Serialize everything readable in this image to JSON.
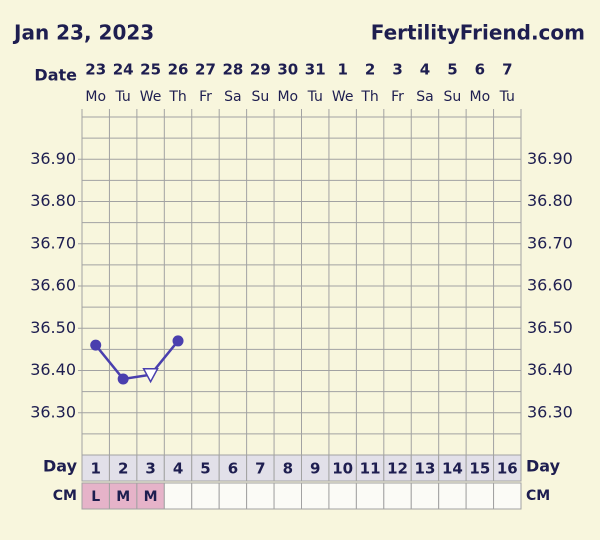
{
  "chart_data": {
    "type": "line",
    "title": "Jan 23, 2023",
    "site": "FertilityFriend.com",
    "date_label": "Date",
    "day_label": "Day",
    "cm_label": "CM",
    "dates": [
      "23",
      "24",
      "25",
      "26",
      "27",
      "28",
      "29",
      "30",
      "31",
      "1",
      "2",
      "3",
      "4",
      "5",
      "6",
      "7"
    ],
    "weekdays": [
      "Mo",
      "Tu",
      "We",
      "Th",
      "Fr",
      "Sa",
      "Su",
      "Mo",
      "Tu",
      "We",
      "Th",
      "Fr",
      "Sa",
      "Su",
      "Mo",
      "Tu"
    ],
    "categories": [
      "1",
      "2",
      "3",
      "4",
      "5",
      "6",
      "7",
      "8",
      "9",
      "10",
      "11",
      "12",
      "13",
      "14",
      "15",
      "16"
    ],
    "cm": [
      "L",
      "M",
      "M",
      null,
      null,
      null,
      null,
      null,
      null,
      null,
      null,
      null,
      null,
      null,
      null,
      null
    ],
    "values": [
      36.46,
      36.38,
      36.39,
      36.47,
      null,
      null,
      null,
      null,
      null,
      null,
      null,
      null,
      null,
      null,
      null,
      null
    ],
    "markers": [
      "circle",
      "circle",
      "triangle",
      "circle",
      null,
      null,
      null,
      null,
      null,
      null,
      null,
      null,
      null,
      null,
      null,
      null
    ],
    "color": "#4a3fae",
    "cm_color": "#e6b3c9",
    "ylim": [
      36.2,
      37.0
    ],
    "yticks": [
      {
        "value": 36.3,
        "label": "36.30"
      },
      {
        "value": 36.4,
        "label": "36.40"
      },
      {
        "value": 36.5,
        "label": "36.50"
      },
      {
        "value": 36.6,
        "label": "36.60"
      },
      {
        "value": 36.7,
        "label": "36.70"
      },
      {
        "value": 36.8,
        "label": "36.80"
      },
      {
        "value": 36.9,
        "label": "36.90"
      }
    ],
    "ygrid": [
      36.2,
      36.25,
      36.3,
      36.35,
      36.4,
      36.45,
      36.5,
      36.55,
      36.6,
      36.65,
      36.7,
      36.75,
      36.8,
      36.85,
      36.9,
      36.95,
      37.0
    ],
    "grid": true
  }
}
